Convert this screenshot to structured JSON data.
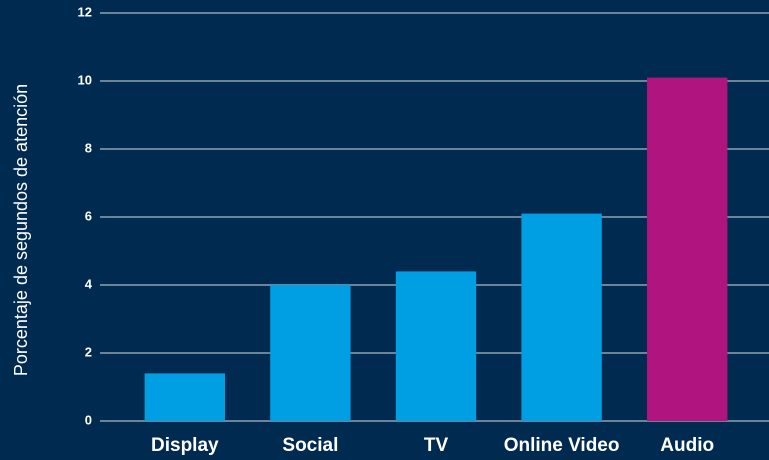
{
  "chart_data": {
    "type": "bar",
    "y_label": "Porcentaje de segundos de atención",
    "categories": [
      "Display",
      "Social",
      "TV",
      "Online Video",
      "Audio"
    ],
    "values": [
      1.4,
      4.0,
      4.4,
      6.1,
      10.1
    ],
    "colors": [
      "#009fe3",
      "#009fe3",
      "#009fe3",
      "#009fe3",
      "#b0157f"
    ],
    "ylim": [
      0,
      12
    ],
    "yticks": [
      0,
      2,
      4,
      6,
      8,
      10,
      12
    ],
    "grid": true
  }
}
